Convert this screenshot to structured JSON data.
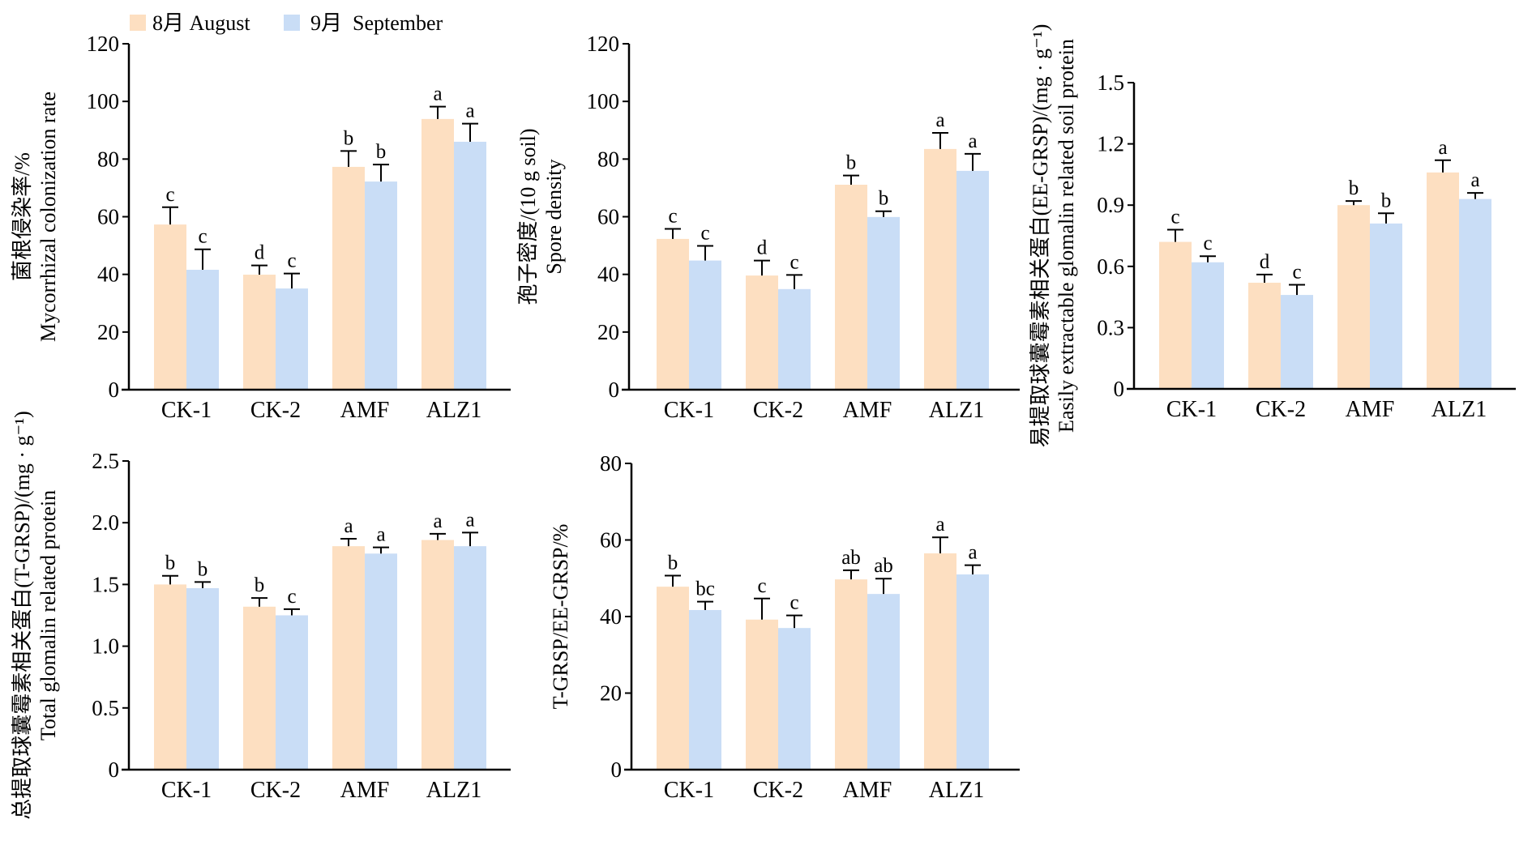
{
  "legend": {
    "items": [
      {
        "label": "8月 August",
        "color": "#FDDFC1"
      },
      {
        "label": "9月  September",
        "color": "#C9DDF6"
      }
    ]
  },
  "chart_data": [
    {
      "type": "bar",
      "id": "colonization",
      "title": "",
      "ylabel_cn": "菌根侵染率/%",
      "ylabel_en": "Mycorrhizal colonization rate",
      "xlabel": "",
      "categories": [
        "CK-1",
        "CK-2",
        "AMF",
        "ALZ1"
      ],
      "ylim": [
        0,
        120
      ],
      "yticks": [
        0,
        20,
        40,
        60,
        80,
        100,
        120
      ],
      "ytick_labels": [
        "0",
        "20",
        "40",
        "60",
        "80",
        "100",
        "120"
      ],
      "grid": false,
      "legend": "top-left",
      "series": [
        {
          "name": "8月 August",
          "values": [
            57.3,
            39.9,
            77.3,
            93.9
          ],
          "error_upper": [
            63.3,
            43.1,
            82.8,
            98.2
          ],
          "letters": [
            "c",
            "d",
            "b",
            "a"
          ]
        },
        {
          "name": "9月  September",
          "values": [
            41.6,
            35.1,
            72.2,
            86.0
          ],
          "error_upper": [
            48.7,
            40.3,
            78.1,
            92.3
          ],
          "letters": [
            "c",
            "c",
            "b",
            "a"
          ]
        }
      ]
    },
    {
      "type": "bar",
      "id": "spore-density",
      "title": "",
      "ylabel_cn": "孢子密度/(10 g soil)",
      "ylabel_en": "Spore density",
      "xlabel": "",
      "categories": [
        "CK-1",
        "CK-2",
        "AMF",
        "ALZ1"
      ],
      "ylim": [
        0,
        120
      ],
      "yticks": [
        0,
        20,
        40,
        60,
        80,
        100,
        120
      ],
      "ytick_labels": [
        "0",
        "20",
        "40",
        "60",
        "80",
        "100",
        "120"
      ],
      "grid": false,
      "series": [
        {
          "name": "8月 August",
          "values": [
            52.3,
            39.6,
            71.1,
            83.5
          ],
          "error_upper": [
            55.8,
            44.8,
            74.3,
            89.1
          ],
          "letters": [
            "c",
            "d",
            "b",
            "a"
          ]
        },
        {
          "name": "9月  September",
          "values": [
            44.8,
            34.9,
            59.9,
            75.9
          ],
          "error_upper": [
            49.9,
            39.8,
            61.9,
            81.8
          ],
          "letters": [
            "c",
            "c",
            "b",
            "a"
          ]
        }
      ]
    },
    {
      "type": "bar",
      "id": "ee-grsp",
      "title": "",
      "ylabel_cn": "易提取球囊霉素相关蛋白(EE-GRSP)/(mg · g⁻¹)",
      "ylabel_en": "Easily extractable glomalin related soil protein",
      "xlabel": "",
      "categories": [
        "CK-1",
        "CK-2",
        "AMF",
        "ALZ1"
      ],
      "ylim": [
        0,
        1.5
      ],
      "yticks": [
        0,
        0.3,
        0.6,
        0.9,
        1.2,
        1.5
      ],
      "ytick_labels": [
        "0",
        "0.3",
        "0.6",
        "0.9",
        "1.2",
        "1.5"
      ],
      "grid": false,
      "series": [
        {
          "name": "8月 August",
          "values": [
            0.72,
            0.52,
            0.9,
            1.06
          ],
          "error_upper": [
            0.78,
            0.56,
            0.92,
            1.12
          ],
          "letters": [
            "c",
            "d",
            "b",
            "a"
          ]
        },
        {
          "name": "9月  September",
          "values": [
            0.62,
            0.46,
            0.81,
            0.93
          ],
          "error_upper": [
            0.65,
            0.51,
            0.86,
            0.96
          ],
          "letters": [
            "c",
            "c",
            "b",
            "a"
          ]
        }
      ]
    },
    {
      "type": "bar",
      "id": "t-grsp",
      "title": "",
      "ylabel_cn": "总提取球囊霉素相关蛋白(T-GRSP)/(mg · g⁻¹)",
      "ylabel_en": "Total glomalin related protein",
      "xlabel": "",
      "categories": [
        "CK-1",
        "CK-2",
        "AMF",
        "ALZ1"
      ],
      "ylim": [
        0,
        2.5
      ],
      "yticks": [
        0,
        0.5,
        1.0,
        1.5,
        2.0,
        2.5
      ],
      "ytick_labels": [
        "0",
        "0.5",
        "1.0",
        "1.5",
        "2.0",
        "2.5"
      ],
      "grid": false,
      "series": [
        {
          "name": "8月 August",
          "values": [
            1.5,
            1.32,
            1.81,
            1.86
          ],
          "error_upper": [
            1.57,
            1.39,
            1.87,
            1.91
          ],
          "letters": [
            "b",
            "b",
            "a",
            "a"
          ]
        },
        {
          "name": "9月  September",
          "values": [
            1.47,
            1.25,
            1.75,
            1.81
          ],
          "error_upper": [
            1.52,
            1.3,
            1.8,
            1.92
          ],
          "letters": [
            "b",
            "c",
            "a",
            "a"
          ]
        }
      ]
    },
    {
      "type": "bar",
      "id": "ratio",
      "title": "",
      "ylabel_cn": "",
      "ylabel_en": "T-GRSP/EE-GRSP/%",
      "xlabel": "",
      "categories": [
        "CK-1",
        "CK-2",
        "AMF",
        "ALZ1"
      ],
      "ylim": [
        0,
        80
      ],
      "yticks": [
        0,
        20,
        40,
        60,
        80
      ],
      "ytick_labels": [
        "0",
        "20",
        "40",
        "60",
        "80"
      ],
      "grid": false,
      "series": [
        {
          "name": "8月 August",
          "values": [
            47.8,
            39.2,
            49.7,
            56.5
          ],
          "error_upper": [
            50.7,
            44.7,
            52.1,
            60.7
          ],
          "letters": [
            "b",
            "c",
            "ab",
            "a"
          ]
        },
        {
          "name": "9月  September",
          "values": [
            41.7,
            37.0,
            45.9,
            51.0
          ],
          "error_upper": [
            43.9,
            40.3,
            49.9,
            53.4
          ],
          "letters": [
            "bc",
            "c",
            "ab",
            "a"
          ]
        }
      ]
    }
  ]
}
